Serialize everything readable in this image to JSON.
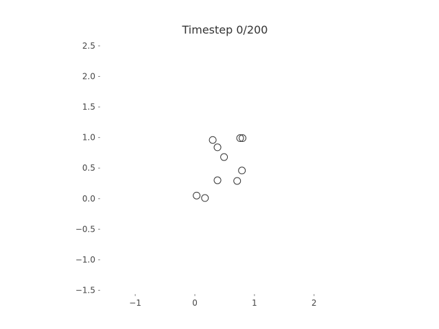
{
  "chart_data": {
    "type": "scatter",
    "title": "Timestep 0/200",
    "xlabel": "",
    "ylabel": "",
    "xlim": [
      -1.6,
      2.6
    ],
    "ylim": [
      -1.55,
      2.6
    ],
    "grid": false,
    "xticks": [
      -1,
      0,
      1,
      2
    ],
    "xtick_labels": [
      "−1",
      "0",
      "1",
      "2"
    ],
    "yticks": [
      2.5,
      2.0,
      1.5,
      1.0,
      0.5,
      0.0,
      -0.5,
      -1.0,
      -1.5
    ],
    "ytick_labels": [
      "2.5",
      "2.0",
      "1.5",
      "1.0",
      "0.5",
      "0.0",
      "−0.5",
      "−1.0",
      "−1.5"
    ],
    "marker": "open-circle",
    "marker_color": "#333333",
    "series": [
      {
        "points": [
          {
            "x": 0.3,
            "y": 0.96
          },
          {
            "x": 0.38,
            "y": 0.84
          },
          {
            "x": 0.49,
            "y": 0.68
          },
          {
            "x": 0.76,
            "y": 0.99
          },
          {
            "x": 0.8,
            "y": 0.99
          },
          {
            "x": 0.79,
            "y": 0.46
          },
          {
            "x": 0.38,
            "y": 0.3
          },
          {
            "x": 0.71,
            "y": 0.29
          },
          {
            "x": 0.03,
            "y": 0.05
          },
          {
            "x": 0.17,
            "y": 0.01
          }
        ]
      }
    ]
  }
}
